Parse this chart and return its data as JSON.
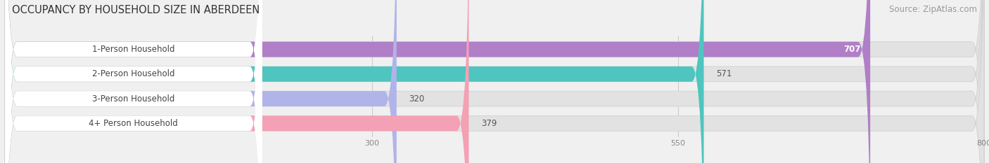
{
  "title": "OCCUPANCY BY HOUSEHOLD SIZE IN ABERDEEN",
  "source": "Source: ZipAtlas.com",
  "categories": [
    "1-Person Household",
    "2-Person Household",
    "3-Person Household",
    "4+ Person Household"
  ],
  "values": [
    707,
    571,
    320,
    379
  ],
  "bar_colors": [
    "#b07fc7",
    "#4ec5bf",
    "#b0b4e8",
    "#f4a0b5"
  ],
  "bar_label_colors": [
    "white",
    "black",
    "black",
    "black"
  ],
  "data_max": 800,
  "xticks": [
    300,
    550,
    800
  ],
  "background_color": "#f0f0f0",
  "bar_bg_color": "#e2e2e2",
  "label_bg_color": "#ffffff",
  "title_fontsize": 10.5,
  "source_fontsize": 8.5,
  "label_fontsize": 8.5,
  "value_fontsize": 8.5
}
